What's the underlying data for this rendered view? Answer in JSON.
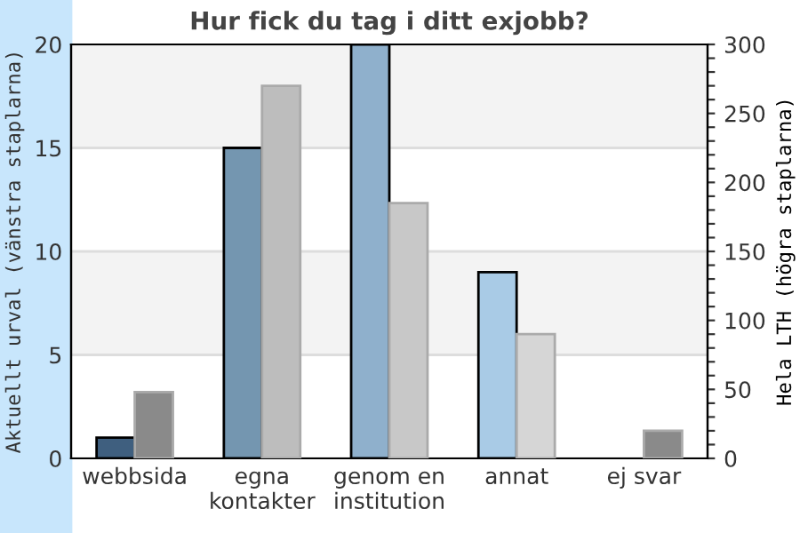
{
  "chart_data": {
    "type": "bar",
    "title": "Hur fick du tag i ditt exjobb?",
    "ylabel": "Aktuellt urval (vänstra staplarna)",
    "y2label": "Hela LTH (högra staplarna)",
    "categories": [
      "webbsida",
      "egna\nkontakter",
      "genom en\ninstitution",
      "annat",
      "ej svar"
    ],
    "series": [
      {
        "colors": [
          "#3f5f7f",
          "#7496b0",
          "#8fb0cc",
          "#a9cbe6",
          "#a9cbe6"
        ],
        "values": [
          1,
          15,
          20,
          9,
          0
        ]
      },
      {
        "colors": [
          "#8a8a8a",
          "#bdbdbd",
          "#c8c8c8",
          "#d6d6d6",
          "#8a8a8a"
        ],
        "values": [
          48,
          270,
          185,
          90,
          20
        ],
        "axis": "y2"
      }
    ],
    "ylim": [
      0,
      20
    ],
    "yticks": [
      0,
      5,
      10,
      15,
      20
    ],
    "y2lim": [
      0,
      300
    ],
    "y2ticks": [
      0,
      {
        "value": 10,
        "label": null
      },
      {
        "value": 20,
        "label": null
      },
      {
        "value": 30,
        "label": null
      },
      {
        "value": 40,
        "label": null
      },
      50,
      {
        "value": 60,
        "label": null
      },
      {
        "value": 70,
        "label": null
      },
      {
        "value": 80,
        "label": null
      },
      {
        "value": 90,
        "label": null
      },
      100,
      {
        "value": 110,
        "label": null
      },
      {
        "value": 120,
        "label": null
      },
      {
        "value": 130,
        "label": null
      },
      {
        "value": 140,
        "label": null
      },
      150,
      {
        "value": 160,
        "label": null
      },
      {
        "value": 170,
        "label": null
      },
      {
        "value": 180,
        "label": null
      },
      {
        "value": 190,
        "label": null
      },
      200,
      {
        "value": 210,
        "label": null
      },
      {
        "value": 220,
        "label": null
      },
      {
        "value": 230,
        "label": null
      },
      {
        "value": 240,
        "label": null
      },
      250,
      {
        "value": 260,
        "label": null
      },
      {
        "value": 270,
        "label": null
      },
      {
        "value": 280,
        "label": null
      },
      {
        "value": 290,
        "label": null
      },
      300
    ],
    "grid": "y",
    "legend": false
  }
}
